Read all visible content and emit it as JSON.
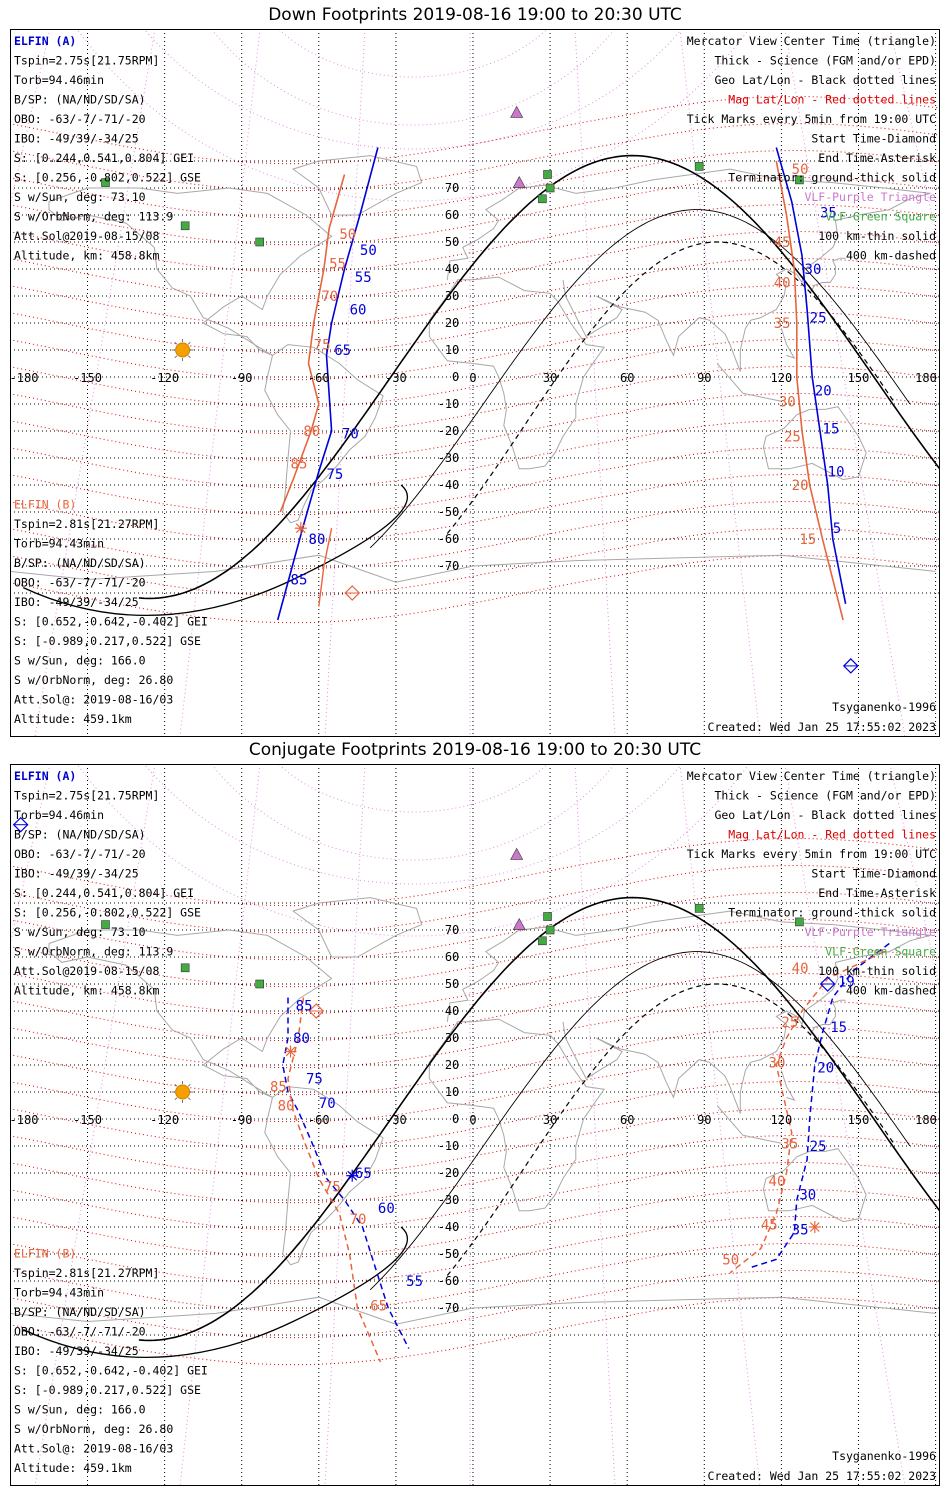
{
  "panels": [
    {
      "title": "Down Footprints 2019-08-16 19:00 to 20:30 UTC",
      "kind": "down",
      "sat_a": {
        "name": "ELFIN (A)",
        "lines": [
          "Tspin=2.75s[21.75RPM]",
          "Torb=94.46min",
          "B/SP: (NA/ND/SD/SA)",
          "OBO: -63/-7/-71/-20",
          "IBO: -49/39/-34/25",
          "S: [0.244,0.541,0.804] GEI",
          "S: [0.256,-0.802,0.522] GSE",
          "S w/Sun, deg: 73.10",
          "S w/OrbNorm, deg: 113.9",
          "Att.Sol@2019-08-15/08",
          "Altitude, km: 458.8km"
        ]
      },
      "sat_b": {
        "name": "ELFIN (B)",
        "lines": [
          "Tspin=2.81s[21.27RPM]",
          "Torb=94.43min",
          "B/SP: (NA/ND/SD/SA)",
          "OBO: -63/-7/-71/-20",
          "IBO: -49/39/-34/25",
          "S: [0.652,-0.642,-0.402] GEI",
          "S: [-0.989,0.217,0.522] GSE",
          "S w/Sun, deg: 166.0",
          "S w/OrbNorm, deg: 26.80",
          "Att.Sol@: 2019-08-16/03",
          "Altitude: 459.1km"
        ]
      },
      "legend": [
        {
          "text": "Mercator View Center Time (triangle)",
          "color": "#000000"
        },
        {
          "text": "Thick - Science (FGM and/or EPD)",
          "color": "#000000"
        },
        {
          "text": "Geo Lat/Lon - Black dotted lines",
          "color": "#000000"
        },
        {
          "text": "Mag Lat/Lon - Red dotted lines",
          "color": "#dd0000"
        },
        {
          "text": "Tick Marks every 5min from 19:00 UTC",
          "color": "#000000"
        },
        {
          "text": "Start Time-Diamond",
          "color": "#000000"
        },
        {
          "text": "End Time-Asterisk",
          "color": "#000000"
        },
        {
          "text": "Terminator: ground-thick solid",
          "color": "#000000"
        },
        {
          "text": "VLF-Purple Triangle",
          "color": "#cc77cc"
        },
        {
          "text": "VLF-Green Square",
          "color": "#44aa44"
        },
        {
          "text": "100 km-thin solid",
          "color": "#000000"
        },
        {
          "text": "400 km-dashed",
          "color": "#000000"
        }
      ],
      "model": "Tsyganenko-1996",
      "created": "Created: Wed Jan 25 17:55:02 2023",
      "lon_labels": [
        "-180",
        "-150",
        "-120",
        "-90",
        "-60",
        "-30",
        "0",
        "30",
        "60",
        "90",
        "120",
        "150",
        "180"
      ],
      "lat_labels": [
        "70",
        "60",
        "50",
        "40",
        "30",
        "20",
        "10",
        "0",
        "-10",
        "-20",
        "-30",
        "-40",
        "-50",
        "-60",
        "-70"
      ],
      "track_labels": [
        {
          "text": "50",
          "color": "#e8643c",
          "lon": -52,
          "lat": 53
        },
        {
          "text": "50",
          "color": "#0000dd",
          "lon": -44,
          "lat": 47
        },
        {
          "text": "55",
          "color": "#e8643c",
          "lon": -56,
          "lat": 42
        },
        {
          "text": "55",
          "color": "#0000dd",
          "lon": -46,
          "lat": 37
        },
        {
          "text": "70",
          "color": "#e8643c",
          "lon": -59,
          "lat": 30
        },
        {
          "text": "60",
          "color": "#0000dd",
          "lon": -48,
          "lat": 25
        },
        {
          "text": "75",
          "color": "#e8643c",
          "lon": -62,
          "lat": 12
        },
        {
          "text": "65",
          "color": "#0000dd",
          "lon": -54,
          "lat": 10
        },
        {
          "text": "80",
          "color": "#e8643c",
          "lon": -66,
          "lat": -20
        },
        {
          "text": "70",
          "color": "#0000dd",
          "lon": -51,
          "lat": -21
        },
        {
          "text": "85",
          "color": "#e8643c",
          "lon": -71,
          "lat": -32
        },
        {
          "text": "75",
          "color": "#0000dd",
          "lon": -57,
          "lat": -36
        },
        {
          "text": "80",
          "color": "#0000dd",
          "lon": -64,
          "lat": -60
        },
        {
          "text": "85",
          "color": "#0000dd",
          "lon": -71,
          "lat": -75
        },
        {
          "text": "50",
          "color": "#e8643c",
          "lon": 124,
          "lat": 77
        },
        {
          "text": "35",
          "color": "#0000dd",
          "lon": 135,
          "lat": 61
        },
        {
          "text": "45",
          "color": "#e8643c",
          "lon": 117,
          "lat": 50
        },
        {
          "text": "30",
          "color": "#0000dd",
          "lon": 129,
          "lat": 40
        },
        {
          "text": "40",
          "color": "#e8643c",
          "lon": 117,
          "lat": 35
        },
        {
          "text": "25",
          "color": "#0000dd",
          "lon": 131,
          "lat": 22
        },
        {
          "text": "35",
          "color": "#e8643c",
          "lon": 117,
          "lat": 20
        },
        {
          "text": "20",
          "color": "#0000dd",
          "lon": 133,
          "lat": -5
        },
        {
          "text": "30",
          "color": "#e8643c",
          "lon": 119,
          "lat": -9
        },
        {
          "text": "15",
          "color": "#0000dd",
          "lon": 136,
          "lat": -19
        },
        {
          "text": "25",
          "color": "#e8643c",
          "lon": 121,
          "lat": -22
        },
        {
          "text": "10",
          "color": "#0000dd",
          "lon": 138,
          "lat": -35
        },
        {
          "text": "20",
          "color": "#e8643c",
          "lon": 124,
          "lat": -40
        },
        {
          "text": "5",
          "color": "#0000dd",
          "lon": 140,
          "lat": -56
        },
        {
          "text": "15",
          "color": "#e8643c",
          "lon": 127,
          "lat": -60
        }
      ]
    },
    {
      "title": "Conjugate Footprints 2019-08-16 19:00 to 20:30 UTC",
      "kind": "conj",
      "sat_a": {
        "name": "ELFIN (A)",
        "lines": [
          "Tspin=2.75s[21.75RPM]",
          "Torb=94.46min",
          "B/SP: (NA/ND/SD/SA)",
          "OBO: -63/-7/-71/-20",
          "IBO: -49/39/-34/25",
          "S: [0.244,0.541,0.804] GEI",
          "S: [0.256,-0.802,0.522] GSE",
          "S w/Sun, deg: 73.10",
          "S w/OrbNorm, deg: 113.9",
          "Att.Sol@2019-08-15/08",
          "Altitude, km: 458.8km"
        ]
      },
      "sat_b": {
        "name": "ELFIN (B)",
        "lines": [
          "Tspin=2.81s[21.27RPM]",
          "Torb=94.43min",
          "B/SP: (NA/ND/SD/SA)",
          "OBO: -63/-7/-71/-20",
          "IBO: -49/39/-34/25",
          "S: [0.652,-0.642,-0.402] GEI",
          "S: [-0.989,0.217,0.522] GSE",
          "S w/Sun, deg: 166.0",
          "S w/OrbNorm, deg: 26.80",
          "Att.Sol@: 2019-08-16/03",
          "Altitude: 459.1km"
        ]
      },
      "legend": [
        {
          "text": "Mercator View Center Time (triangle)",
          "color": "#000000"
        },
        {
          "text": "Thick - Science (FGM and/or EPD)",
          "color": "#000000"
        },
        {
          "text": "Geo Lat/Lon - Black dotted lines",
          "color": "#000000"
        },
        {
          "text": "Mag Lat/Lon - Red dotted lines",
          "color": "#dd0000"
        },
        {
          "text": "Tick Marks every 5min from 19:00 UTC",
          "color": "#000000"
        },
        {
          "text": "Start Time-Diamond",
          "color": "#000000"
        },
        {
          "text": "End Time-Asterisk",
          "color": "#000000"
        },
        {
          "text": "Terminator: ground-thick solid",
          "color": "#000000"
        },
        {
          "text": "VLF-Purple Triangle",
          "color": "#cc77cc"
        },
        {
          "text": "VLF-Green Square",
          "color": "#44aa44"
        },
        {
          "text": "100 km-thin solid",
          "color": "#000000"
        },
        {
          "text": "400 km-dashed",
          "color": "#000000"
        }
      ],
      "model": "Tsyganenko-1996",
      "created": "Created: Wed Jan 25 17:55:02 2023",
      "lon_labels": [
        "-180",
        "-150",
        "-120",
        "-90",
        "-60",
        "-30",
        "0",
        "30",
        "60",
        "90",
        "120",
        "150",
        "180"
      ],
      "lat_labels": [
        "70",
        "60",
        "50",
        "40",
        "30",
        "20",
        "10",
        "0",
        "-10",
        "-20",
        "-30",
        "-40",
        "-50",
        "-60",
        "-70"
      ],
      "track_labels": [
        {
          "text": "85",
          "color": "#0000dd",
          "lon": -69,
          "lat": 42
        },
        {
          "text": "80",
          "color": "#0000dd",
          "lon": -70,
          "lat": 30
        },
        {
          "text": "75",
          "color": "#0000dd",
          "lon": -65,
          "lat": 15
        },
        {
          "text": "85",
          "color": "#e8643c",
          "lon": -79,
          "lat": 12
        },
        {
          "text": "70",
          "color": "#0000dd",
          "lon": -60,
          "lat": 6
        },
        {
          "text": "80",
          "color": "#e8643c",
          "lon": -76,
          "lat": 5
        },
        {
          "text": "65",
          "color": "#0000dd",
          "lon": -46,
          "lat": -20
        },
        {
          "text": "75",
          "color": "#e8643c",
          "lon": -58,
          "lat": -25
        },
        {
          "text": "60",
          "color": "#0000dd",
          "lon": -37,
          "lat": -33
        },
        {
          "text": "70",
          "color": "#e8643c",
          "lon": -48,
          "lat": -37
        },
        {
          "text": "55",
          "color": "#0000dd",
          "lon": -26,
          "lat": -60
        },
        {
          "text": "65",
          "color": "#e8643c",
          "lon": -40,
          "lat": -69
        },
        {
          "text": "40",
          "color": "#e8643c",
          "lon": 124,
          "lat": 56
        },
        {
          "text": "19",
          "color": "#0000dd",
          "lon": 142,
          "lat": 51
        },
        {
          "text": "25",
          "color": "#e8643c",
          "lon": 120,
          "lat": 36
        },
        {
          "text": "15",
          "color": "#0000dd",
          "lon": 139,
          "lat": 34
        },
        {
          "text": "30",
          "color": "#e8643c",
          "lon": 115,
          "lat": 21
        },
        {
          "text": "20",
          "color": "#0000dd",
          "lon": 134,
          "lat": 19
        },
        {
          "text": "35",
          "color": "#e8643c",
          "lon": 120,
          "lat": -9
        },
        {
          "text": "25",
          "color": "#0000dd",
          "lon": 131,
          "lat": -10
        },
        {
          "text": "40",
          "color": "#e8643c",
          "lon": 115,
          "lat": -23
        },
        {
          "text": "30",
          "color": "#0000dd",
          "lon": 127,
          "lat": -28
        },
        {
          "text": "45",
          "color": "#e8643c",
          "lon": 112,
          "lat": -39
        },
        {
          "text": "35",
          "color": "#0000dd",
          "lon": 124,
          "lat": -41
        },
        {
          "text": "50",
          "color": "#e8643c",
          "lon": 97,
          "lat": -52
        }
      ]
    }
  ]
}
